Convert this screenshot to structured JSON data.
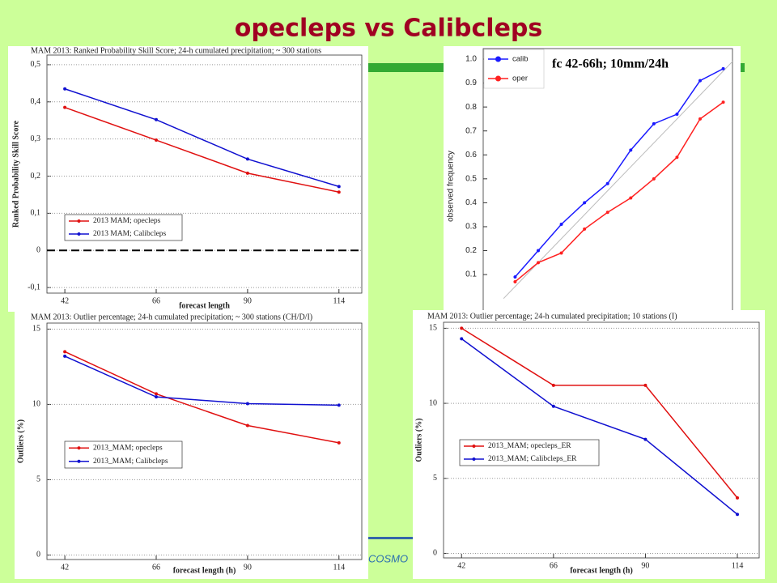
{
  "title": "opecleps vs Calibcleps",
  "footer": "COSMO",
  "chart_data": [
    {
      "type": "line",
      "title": "MAM 2013: Ranked Probability Skill Score; 24-h cumulated precipitation; ~ 300 stations",
      "xlabel": "forecast length",
      "ylabel": "Ranked Probability Skill Score",
      "x": [
        42,
        66,
        90,
        114
      ],
      "xlim": [
        37.3,
        120
      ],
      "xticks": [
        42,
        66,
        90,
        114
      ],
      "ylim": [
        -0.115,
        0.526
      ],
      "yticks": [
        {
          "value": -0.1,
          "label": "-0,1"
        },
        0,
        {
          "value": 0.1,
          "label": "0,1"
        },
        {
          "value": 0.2,
          "label": "0,2"
        },
        {
          "value": 0.3,
          "label": "0,3"
        },
        {
          "value": 0.4,
          "label": "0,4"
        },
        {
          "value": 0.5,
          "label": "0,5"
        }
      ],
      "grid": true,
      "legend": "lower left",
      "series": [
        {
          "name": "2013 MAM; opecleps",
          "color": "#e01010",
          "values": [
            0.385,
            0.297,
            0.208,
            0.157
          ]
        },
        {
          "name": "2013 MAM; Calibcleps",
          "color": "#1010d0",
          "values": [
            0.435,
            0.352,
            0.246,
            0.172
          ]
        }
      ]
    },
    {
      "type": "line",
      "ylabel": "observed frequency",
      "annotation": "fc 42-66h; 10mm/24h",
      "x": [
        0.05,
        0.15,
        0.25,
        0.35,
        0.45,
        0.55,
        0.65,
        0.75,
        0.85,
        0.95
      ],
      "xlim": [
        -0.088,
        0.99
      ],
      "ylim": [
        -0.106,
        1.044
      ],
      "yticks": [
        0.1,
        0.2,
        0.3,
        0.4,
        0.5,
        0.6,
        0.7,
        0.8,
        0.9,
        {
          "value": 1,
          "label": "1.0"
        }
      ],
      "grid": false,
      "legend": "upper left",
      "series": [
        {
          "name": "calib",
          "color": "#1a1aff",
          "values": [
            0.09,
            0.2,
            0.31,
            0.4,
            0.48,
            0.62,
            0.73,
            0.77,
            0.91,
            0.96
          ]
        },
        {
          "name": "oper",
          "color": "#ff2020",
          "values": [
            0.07,
            0.15,
            0.19,
            0.29,
            0.36,
            0.42,
            0.5,
            0.59,
            0.75,
            0.82
          ]
        }
      ]
    },
    {
      "type": "line",
      "title": "MAM 2013: Outlier percentage; 24-h cumulated precipitation; ~ 300 stations (CH/D/I)",
      "xlabel": "forecast length (h)",
      "ylabel": "Outliers (%)",
      "x": [
        42,
        66,
        90,
        114
      ],
      "xlim": [
        37.3,
        120
      ],
      "xticks": [
        42,
        66,
        90,
        114
      ],
      "ylim": [
        -0.3,
        15.4
      ],
      "yticks": [
        0,
        5,
        10,
        15
      ],
      "grid": true,
      "legend": "lower left",
      "series": [
        {
          "name": "2013_MAM; opecleps",
          "color": "#e01010",
          "values": [
            13.5,
            10.7,
            8.6,
            7.45
          ]
        },
        {
          "name": "2013_MAM; Calibcleps",
          "color": "#1010d0",
          "values": [
            13.2,
            10.5,
            10.05,
            9.95
          ]
        }
      ]
    },
    {
      "type": "line",
      "title": "MAM 2013: Outlier percentage; 24-h cumulated precipitation; 10 stations (I)",
      "xlabel": "forecast length (h)",
      "ylabel": "Outliers (%)",
      "x": [
        42,
        66,
        90,
        114
      ],
      "xlim": [
        37.3,
        119.7
      ],
      "xticks": [
        42,
        66,
        90,
        114
      ],
      "ylim": [
        -0.3,
        15.4
      ],
      "yticks": [
        0,
        5,
        10,
        15
      ],
      "grid": true,
      "legend": "lower left",
      "series": [
        {
          "name": "2013_MAM; opecleps_ER",
          "color": "#e01010",
          "values": [
            15.0,
            11.2,
            11.2,
            3.7
          ]
        },
        {
          "name": "2013_MAM; Calibcleps_ER",
          "color": "#1010d0",
          "values": [
            14.3,
            9.8,
            7.6,
            2.6
          ]
        }
      ]
    }
  ]
}
